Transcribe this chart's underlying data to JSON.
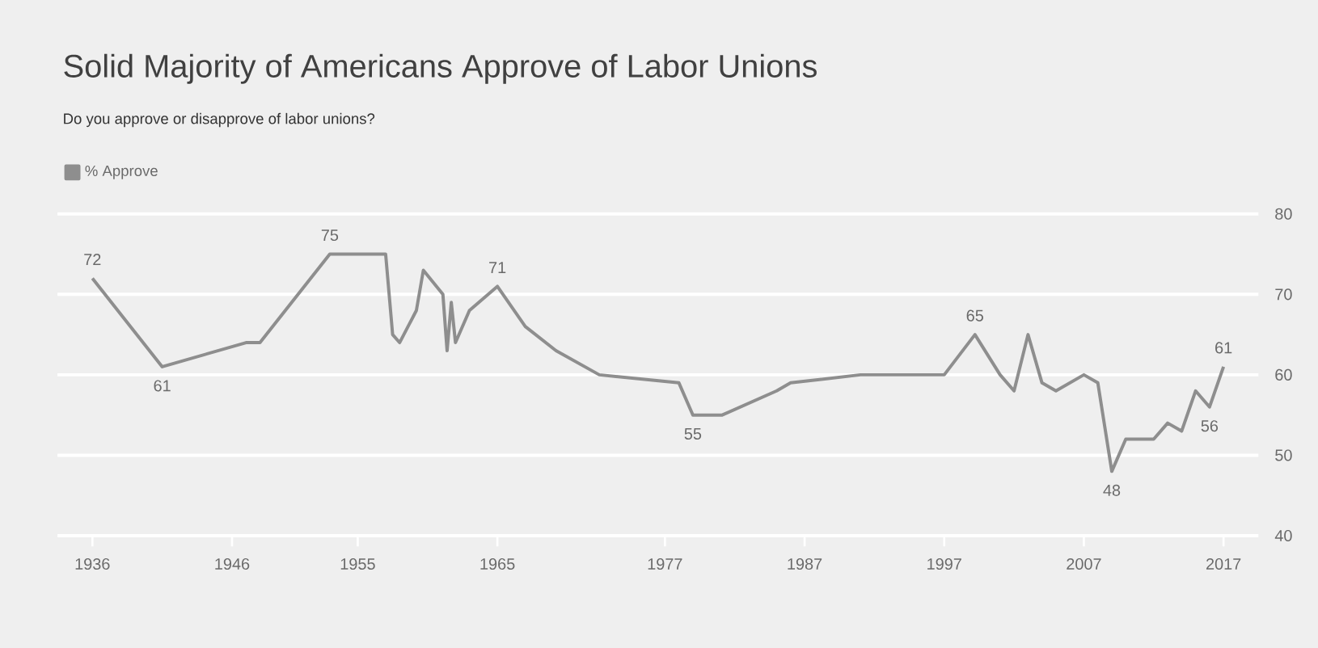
{
  "chart_data": {
    "type": "line",
    "title": "Solid Majority of Americans Approve of Labor Unions",
    "subtitle": "Do you approve or disapprove of labor unions?",
    "x": [
      1936,
      1941,
      1947,
      1948,
      1953,
      1957,
      1957.5,
      1958,
      1959.2,
      1959.7,
      1961.1,
      1961.4,
      1961.7,
      1962,
      1963,
      1965,
      1967,
      1969.2,
      1972.3,
      1978,
      1979,
      1981.1,
      1985,
      1986,
      1991,
      1997,
      1999.2,
      2001,
      2002,
      2003,
      2004,
      2005,
      2007,
      2008,
      2009,
      2010,
      2012,
      2013,
      2014,
      2015,
      2016,
      2017
    ],
    "series": [
      {
        "name": "% Approve",
        "color": "#8e8e8e",
        "values": [
          72,
          61,
          64,
          64,
          75,
          75,
          65,
          64,
          68,
          73,
          70,
          63,
          69,
          64,
          68,
          71,
          66,
          63,
          60,
          59,
          55,
          55,
          58,
          59,
          60,
          60,
          65,
          60,
          58,
          65,
          59,
          58,
          60,
          59,
          48,
          52,
          52,
          54,
          53,
          58,
          56,
          61
        ],
        "value_labels": [
          "72",
          "61",
          null,
          null,
          "75",
          null,
          null,
          null,
          null,
          null,
          null,
          null,
          null,
          null,
          null,
          "71",
          null,
          null,
          null,
          null,
          "55",
          null,
          null,
          null,
          null,
          null,
          "65",
          null,
          null,
          null,
          null,
          null,
          null,
          null,
          "48",
          null,
          null,
          null,
          null,
          null,
          "56",
          "61"
        ]
      }
    ],
    "xlim": [
      1933.5,
      2019.5
    ],
    "xticks": [
      1936,
      1946,
      1955,
      1965,
      1977,
      1987,
      1997,
      2007,
      2017
    ],
    "ylim": [
      40,
      80
    ],
    "yticks": [
      40,
      50,
      60,
      70,
      80
    ],
    "grid": "y",
    "legend": "top left",
    "line_style": "solid",
    "marker": "none"
  }
}
